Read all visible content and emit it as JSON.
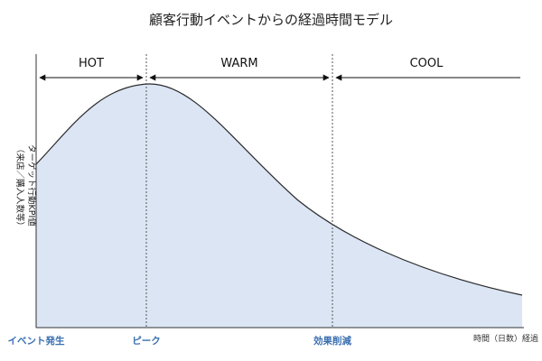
{
  "title": "顧客行動イベントからの経過時間モデル",
  "zones": [
    {
      "label": "HOT"
    },
    {
      "label": "WARM"
    },
    {
      "label": "COOL"
    }
  ],
  "x_markers": {
    "event": "イベント発生",
    "peak": "ピーク",
    "decline": "効果削減"
  },
  "x_axis_label": "時間（日数）経過",
  "y_axis_label_main": "ターゲット行動KPI値",
  "y_axis_label_sub": "（来店／購入人数等）",
  "colors": {
    "area_fill": "#dbe5f4",
    "curve": "#2b2b2b",
    "marker_text": "#3a6fb0"
  }
}
